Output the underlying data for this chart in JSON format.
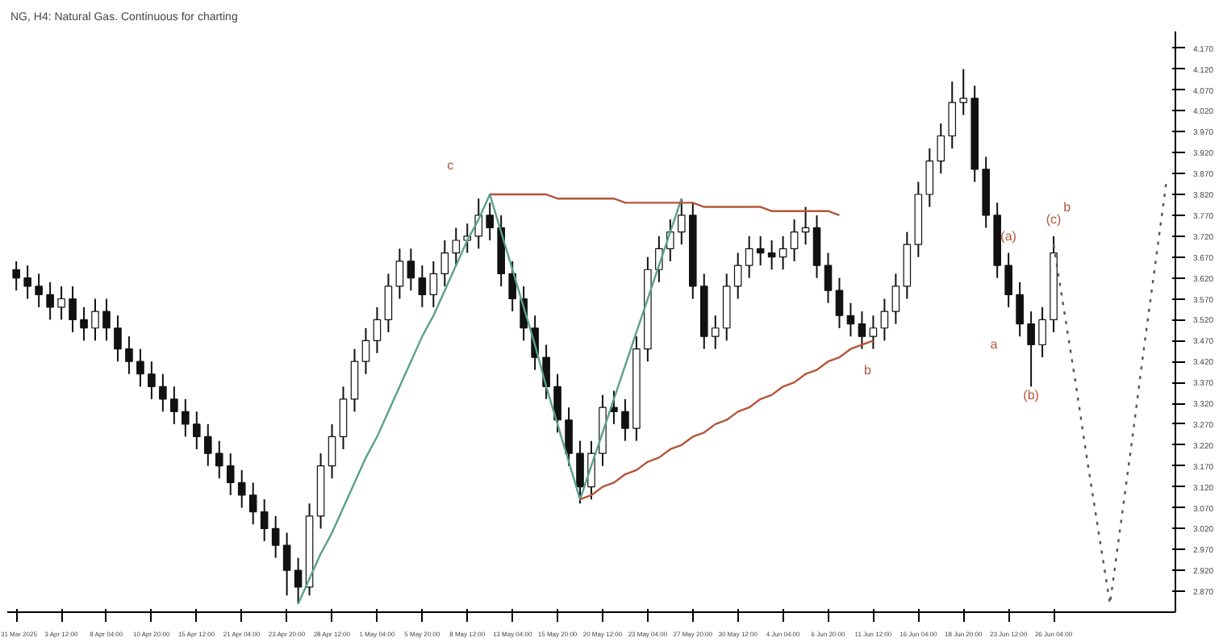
{
  "chart_data": {
    "type": "candlestick",
    "title": "NG, H4: Natural Gas. Continuous for charting",
    "categories": [
      "31 Mar 2025",
      null,
      null,
      null,
      "3 Apr 12:00",
      null,
      null,
      null,
      "8 Apr 04:00",
      null,
      null,
      null,
      "10 Apr 20:00",
      null,
      null,
      null,
      "15 Apr 12:00",
      null,
      null,
      null,
      "21 Apr 04:00",
      null,
      null,
      null,
      "23 Apr 20:00",
      null,
      null,
      null,
      "28 Apr 12:00",
      null,
      null,
      null,
      "1 May 04:00",
      null,
      null,
      null,
      "5 May 20:00",
      null,
      null,
      null,
      "8 May 12:00",
      null,
      null,
      null,
      "13 May 04:00",
      null,
      null,
      null,
      "15 May 20:00",
      null,
      null,
      null,
      "20 May 12:00",
      null,
      null,
      null,
      "23 May 04:00",
      null,
      null,
      null,
      "27 May 20:00",
      null,
      null,
      null,
      "30 May 12:00",
      null,
      null,
      null,
      "4 Jun 04:00",
      null,
      null,
      null,
      "6 Jun 20:00",
      null,
      null,
      null,
      "11 Jun 12:00",
      null,
      null,
      null,
      "16 Jun 04:00",
      null,
      null,
      null,
      "18 Jun 20:00",
      null,
      null,
      null,
      "23 Jun 12:00",
      null,
      null,
      null,
      "26 Jun 04:00",
      null,
      null,
      null,
      null,
      null,
      null,
      null,
      null,
      null,
      null
    ],
    "ohlc": [
      [
        3.64,
        3.66,
        3.59,
        3.62
      ],
      [
        3.62,
        3.65,
        3.57,
        3.6
      ],
      [
        3.6,
        3.63,
        3.55,
        3.58
      ],
      [
        3.58,
        3.61,
        3.52,
        3.55
      ],
      [
        3.55,
        3.6,
        3.52,
        3.57
      ],
      [
        3.57,
        3.6,
        3.49,
        3.52
      ],
      [
        3.52,
        3.55,
        3.47,
        3.5
      ],
      [
        3.5,
        3.57,
        3.47,
        3.54
      ],
      [
        3.54,
        3.57,
        3.47,
        3.5
      ],
      [
        3.5,
        3.53,
        3.42,
        3.45
      ],
      [
        3.45,
        3.48,
        3.39,
        3.42
      ],
      [
        3.42,
        3.45,
        3.36,
        3.39
      ],
      [
        3.39,
        3.42,
        3.33,
        3.36
      ],
      [
        3.36,
        3.39,
        3.3,
        3.33
      ],
      [
        3.33,
        3.36,
        3.27,
        3.3
      ],
      [
        3.3,
        3.33,
        3.24,
        3.27
      ],
      [
        3.27,
        3.3,
        3.21,
        3.24
      ],
      [
        3.24,
        3.27,
        3.17,
        3.2
      ],
      [
        3.2,
        3.23,
        3.14,
        3.17
      ],
      [
        3.17,
        3.2,
        3.1,
        3.13
      ],
      [
        3.13,
        3.16,
        3.07,
        3.1
      ],
      [
        3.1,
        3.13,
        3.03,
        3.06
      ],
      [
        3.06,
        3.09,
        2.99,
        3.02
      ],
      [
        3.02,
        3.05,
        2.95,
        2.98
      ],
      [
        2.98,
        3.01,
        2.86,
        2.92
      ],
      [
        2.92,
        2.95,
        2.84,
        2.88
      ],
      [
        2.88,
        3.08,
        2.86,
        3.05
      ],
      [
        3.05,
        3.2,
        3.02,
        3.17
      ],
      [
        3.17,
        3.27,
        3.14,
        3.24
      ],
      [
        3.24,
        3.36,
        3.21,
        3.33
      ],
      [
        3.33,
        3.45,
        3.3,
        3.42
      ],
      [
        3.42,
        3.5,
        3.39,
        3.47
      ],
      [
        3.47,
        3.55,
        3.44,
        3.52
      ],
      [
        3.52,
        3.63,
        3.49,
        3.6
      ],
      [
        3.6,
        3.69,
        3.57,
        3.66
      ],
      [
        3.66,
        3.69,
        3.59,
        3.62
      ],
      [
        3.62,
        3.65,
        3.55,
        3.58
      ],
      [
        3.58,
        3.66,
        3.55,
        3.63
      ],
      [
        3.63,
        3.71,
        3.6,
        3.68
      ],
      [
        3.68,
        3.74,
        3.65,
        3.71
      ],
      [
        3.71,
        3.75,
        3.68,
        3.72
      ],
      [
        3.72,
        3.81,
        3.69,
        3.77
      ],
      [
        3.77,
        3.8,
        3.71,
        3.74
      ],
      [
        3.74,
        3.77,
        3.6,
        3.63
      ],
      [
        3.63,
        3.66,
        3.54,
        3.57
      ],
      [
        3.57,
        3.6,
        3.47,
        3.5
      ],
      [
        3.5,
        3.53,
        3.4,
        3.43
      ],
      [
        3.43,
        3.46,
        3.33,
        3.36
      ],
      [
        3.36,
        3.39,
        3.25,
        3.28
      ],
      [
        3.28,
        3.31,
        3.17,
        3.2
      ],
      [
        3.2,
        3.23,
        3.08,
        3.12
      ],
      [
        3.12,
        3.23,
        3.09,
        3.2
      ],
      [
        3.2,
        3.34,
        3.17,
        3.31
      ],
      [
        3.31,
        3.35,
        3.27,
        3.3
      ],
      [
        3.3,
        3.33,
        3.23,
        3.26
      ],
      [
        3.26,
        3.48,
        3.23,
        3.45
      ],
      [
        3.45,
        3.67,
        3.42,
        3.64
      ],
      [
        3.64,
        3.72,
        3.61,
        3.69
      ],
      [
        3.69,
        3.76,
        3.66,
        3.73
      ],
      [
        3.73,
        3.81,
        3.7,
        3.77
      ],
      [
        3.77,
        3.8,
        3.57,
        3.6
      ],
      [
        3.6,
        3.63,
        3.45,
        3.48
      ],
      [
        3.48,
        3.53,
        3.45,
        3.5
      ],
      [
        3.5,
        3.63,
        3.47,
        3.6
      ],
      [
        3.6,
        3.68,
        3.57,
        3.65
      ],
      [
        3.65,
        3.72,
        3.62,
        3.69
      ],
      [
        3.69,
        3.72,
        3.65,
        3.68
      ],
      [
        3.68,
        3.71,
        3.64,
        3.67
      ],
      [
        3.67,
        3.72,
        3.64,
        3.69
      ],
      [
        3.69,
        3.76,
        3.66,
        3.73
      ],
      [
        3.73,
        3.79,
        3.7,
        3.74
      ],
      [
        3.74,
        3.77,
        3.62,
        3.65
      ],
      [
        3.65,
        3.68,
        3.56,
        3.59
      ],
      [
        3.59,
        3.62,
        3.5,
        3.53
      ],
      [
        3.53,
        3.56,
        3.48,
        3.51
      ],
      [
        3.51,
        3.54,
        3.45,
        3.48
      ],
      [
        3.48,
        3.53,
        3.45,
        3.5
      ],
      [
        3.5,
        3.57,
        3.47,
        3.54
      ],
      [
        3.54,
        3.63,
        3.51,
        3.6
      ],
      [
        3.6,
        3.73,
        3.57,
        3.7
      ],
      [
        3.7,
        3.85,
        3.67,
        3.82
      ],
      [
        3.82,
        3.93,
        3.79,
        3.9
      ],
      [
        3.9,
        3.99,
        3.87,
        3.96
      ],
      [
        3.96,
        4.09,
        3.93,
        4.04
      ],
      [
        4.04,
        4.12,
        4.01,
        4.05
      ],
      [
        4.05,
        4.08,
        3.85,
        3.88
      ],
      [
        3.88,
        3.91,
        3.74,
        3.77
      ],
      [
        3.77,
        3.8,
        3.62,
        3.65
      ],
      [
        3.65,
        3.68,
        3.55,
        3.58
      ],
      [
        3.58,
        3.61,
        3.48,
        3.51
      ],
      [
        3.51,
        3.54,
        3.36,
        3.46
      ],
      [
        3.46,
        3.55,
        3.43,
        3.52
      ],
      [
        3.52,
        3.72,
        3.49,
        3.68
      ],
      null,
      null,
      null,
      null,
      null,
      null,
      null,
      null,
      null,
      null
    ],
    "series": [
      {
        "type": "line",
        "color": "#5aa08c",
        "values": [
          null,
          null,
          null,
          null,
          null,
          null,
          null,
          null,
          null,
          null,
          null,
          null,
          null,
          null,
          null,
          null,
          null,
          null,
          null,
          null,
          null,
          null,
          null,
          null,
          null,
          2.84,
          2.9,
          2.96,
          3.01,
          3.07,
          3.13,
          3.19,
          3.24,
          3.3,
          3.36,
          3.42,
          3.48,
          3.53,
          3.59,
          3.65,
          3.71,
          3.76,
          3.82,
          3.73,
          3.64,
          3.55,
          3.46,
          3.36,
          3.27,
          3.18,
          3.09,
          3.17,
          3.25,
          3.33,
          3.41,
          3.49,
          3.57,
          3.65,
          3.73,
          3.81,
          null,
          null,
          null,
          null,
          null,
          null,
          null,
          null,
          null,
          null,
          null,
          null,
          null,
          null,
          null,
          null,
          null,
          null,
          null,
          null,
          null,
          null,
          null,
          null,
          null,
          null,
          null,
          null,
          null,
          null,
          null,
          null,
          null,
          null,
          null,
          null,
          null,
          null,
          null,
          null,
          null,
          null,
          null
        ]
      },
      {
        "type": "line",
        "color": "#b5553a",
        "values": [
          null,
          null,
          null,
          null,
          null,
          null,
          null,
          null,
          null,
          null,
          null,
          null,
          null,
          null,
          null,
          null,
          null,
          null,
          null,
          null,
          null,
          null,
          null,
          null,
          null,
          null,
          null,
          null,
          null,
          null,
          null,
          null,
          null,
          null,
          null,
          null,
          null,
          null,
          null,
          null,
          null,
          null,
          3.82,
          3.82,
          3.82,
          3.82,
          3.82,
          3.82,
          3.81,
          3.81,
          3.81,
          3.81,
          3.81,
          3.81,
          3.8,
          3.8,
          3.8,
          3.8,
          3.8,
          3.8,
          3.8,
          3.79,
          3.79,
          3.79,
          3.79,
          3.79,
          3.79,
          3.78,
          3.78,
          3.78,
          3.78,
          3.78,
          3.78,
          3.77,
          null,
          null,
          null,
          null,
          null,
          null,
          null,
          null,
          null,
          null,
          null,
          null,
          null,
          null,
          null,
          null,
          null,
          null,
          null,
          null,
          null,
          null,
          null,
          null,
          null,
          null,
          null,
          null,
          null
        ]
      },
      {
        "type": "line",
        "color": "#b5553a",
        "values": [
          null,
          null,
          null,
          null,
          null,
          null,
          null,
          null,
          null,
          null,
          null,
          null,
          null,
          null,
          null,
          null,
          null,
          null,
          null,
          null,
          null,
          null,
          null,
          null,
          null,
          null,
          null,
          null,
          null,
          null,
          null,
          null,
          null,
          null,
          null,
          null,
          null,
          null,
          null,
          null,
          null,
          null,
          null,
          null,
          null,
          null,
          null,
          null,
          null,
          null,
          3.09,
          3.1,
          3.12,
          3.13,
          3.15,
          3.16,
          3.18,
          3.19,
          3.21,
          3.22,
          3.24,
          3.25,
          3.27,
          3.28,
          3.3,
          3.31,
          3.33,
          3.34,
          3.36,
          3.37,
          3.39,
          3.4,
          3.42,
          3.43,
          3.45,
          3.46,
          3.47,
          null,
          null,
          null,
          null,
          null,
          null,
          null,
          null,
          null,
          null,
          null,
          null,
          null,
          null,
          null,
          null,
          null,
          null,
          null,
          null,
          null,
          null,
          null,
          null,
          null,
          null
        ]
      },
      {
        "type": "line",
        "color": "#555555",
        "line_style": "dotted",
        "values": [
          null,
          null,
          null,
          null,
          null,
          null,
          null,
          null,
          null,
          null,
          null,
          null,
          null,
          null,
          null,
          null,
          null,
          null,
          null,
          null,
          null,
          null,
          null,
          null,
          null,
          null,
          null,
          null,
          null,
          null,
          null,
          null,
          null,
          null,
          null,
          null,
          null,
          null,
          null,
          null,
          null,
          null,
          null,
          null,
          null,
          null,
          null,
          null,
          null,
          null,
          null,
          null,
          null,
          null,
          null,
          null,
          null,
          null,
          null,
          null,
          null,
          null,
          null,
          null,
          null,
          null,
          null,
          null,
          null,
          null,
          null,
          null,
          null,
          null,
          null,
          null,
          null,
          null,
          null,
          null,
          null,
          null,
          null,
          null,
          null,
          null,
          null,
          null,
          null,
          null,
          null,
          null,
          3.7,
          3.53,
          3.36,
          3.18,
          3.01,
          2.84,
          3.04,
          3.24,
          3.45,
          3.65,
          3.85
        ]
      }
    ],
    "ylim": [
      2.82,
      4.21
    ],
    "yticks": [
      {
        "value": 4.17,
        "label": "4.170"
      },
      {
        "value": 4.12,
        "label": "4.120"
      },
      {
        "value": 4.07,
        "label": "4.070"
      },
      {
        "value": 4.02,
        "label": "4.020"
      },
      {
        "value": 3.97,
        "label": "3.970"
      },
      {
        "value": 3.92,
        "label": "3.920"
      },
      {
        "value": 3.87,
        "label": "3.870"
      },
      {
        "value": 3.82,
        "label": "3.820"
      },
      {
        "value": 3.77,
        "label": "3.770"
      },
      {
        "value": 3.72,
        "label": "3.720"
      },
      {
        "value": 3.67,
        "label": "3.670"
      },
      {
        "value": 3.62,
        "label": "3.620"
      },
      {
        "value": 3.57,
        "label": "3.570"
      },
      {
        "value": 3.52,
        "label": "3.520"
      },
      {
        "value": 3.47,
        "label": "3.470"
      },
      {
        "value": 3.42,
        "label": "3.420"
      },
      {
        "value": 3.37,
        "label": "3.370"
      },
      {
        "value": 3.32,
        "label": "3.320"
      },
      {
        "value": 3.27,
        "label": "3.270"
      },
      {
        "value": 3.22,
        "label": "3.220"
      },
      {
        "value": 3.17,
        "label": "3.170"
      },
      {
        "value": 3.12,
        "label": "3.120"
      },
      {
        "value": 3.07,
        "label": "3.070"
      },
      {
        "value": 3.02,
        "label": "3.020"
      },
      {
        "value": 2.97,
        "label": "2.970"
      },
      {
        "value": 2.92,
        "label": "2.920"
      },
      {
        "value": 2.87,
        "label": "2.870"
      }
    ],
    "annotations": [
      "c",
      "b",
      "a",
      "(a)",
      "(b)",
      "(c)",
      "b"
    ],
    "grid": false
  }
}
